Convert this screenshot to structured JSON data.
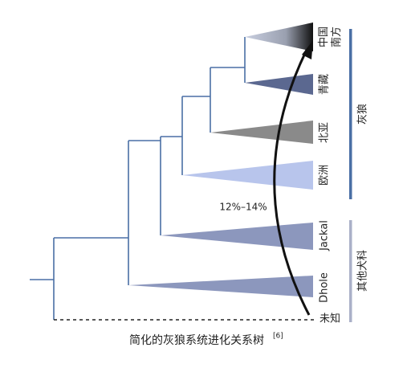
{
  "leaves": [
    {
      "label": "中国南方"
    },
    {
      "label": "青藏"
    },
    {
      "label": "北亚"
    },
    {
      "label": "欧洲"
    },
    {
      "label": "Jackal"
    },
    {
      "label": "Dhole"
    },
    {
      "label": "未知"
    }
  ],
  "groups": [
    {
      "label": "灰狼"
    },
    {
      "label": "其他犬科"
    }
  ],
  "annotation": "12%–14%",
  "caption": {
    "text": "简化的灰狼系统进化关系树",
    "ref": "[6]"
  }
}
